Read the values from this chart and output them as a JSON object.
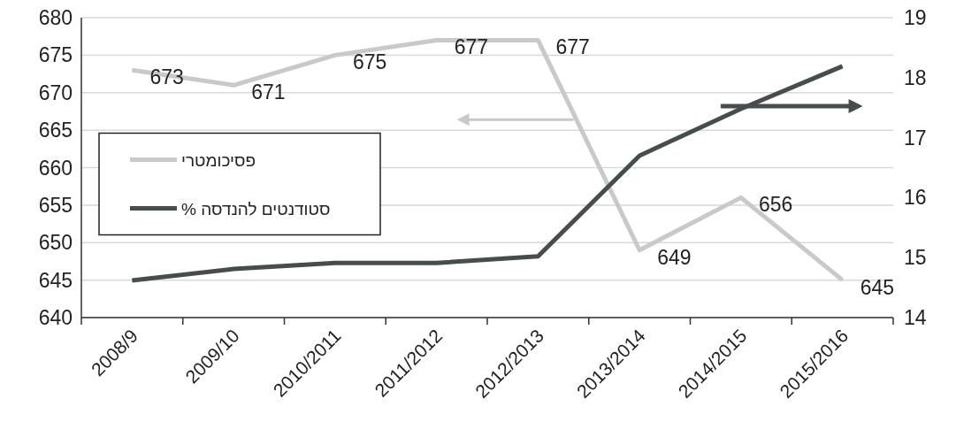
{
  "chart_data": {
    "type": "line",
    "categories": [
      "2008/9",
      "2009/10",
      "2010/2011",
      "2011/2012",
      "2012/2013",
      "2013/2014",
      "2014/2015",
      "2015/2016"
    ],
    "series": [
      {
        "name": "פסיכומטרי",
        "color": "#c9c9c9",
        "values": [
          673,
          671,
          675,
          677,
          677,
          649,
          656,
          645
        ],
        "value_labels": [
          "673",
          "671",
          "675",
          "677",
          "677",
          "649",
          "656",
          "645"
        ]
      },
      {
        "name": "סטודנטים להנדסה %",
        "color": "#474d4d",
        "axis": "y2",
        "values": [
          14.62,
          14.81,
          14.91,
          14.91,
          15.02,
          16.7,
          17.48,
          18.19
        ]
      }
    ],
    "ylim": [
      640,
      680
    ],
    "yticks": [
      640,
      645,
      650,
      655,
      660,
      665,
      670,
      675,
      680
    ],
    "y2lim": [
      14,
      19
    ],
    "y2ticks": [
      14,
      15,
      16,
      17,
      18,
      19
    ],
    "grid": "y",
    "legend": "left",
    "marker": "none",
    "line_style": "solid"
  }
}
